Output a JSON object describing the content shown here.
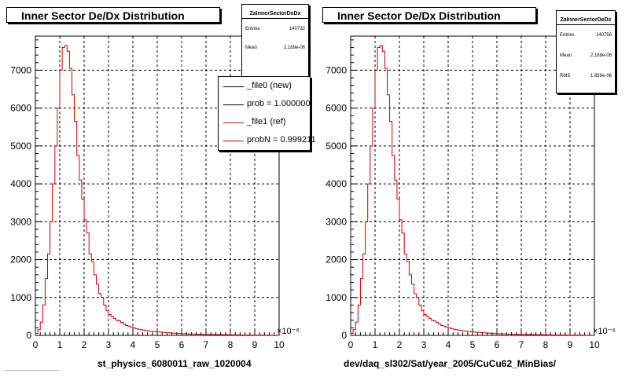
{
  "chart_data": [
    {
      "type": "bar",
      "title": "Inner Sector De/Dx Distribution",
      "xlabel": "st_physics_6080011_raw_1020004",
      "ylabel": "",
      "x_exponent_label": "×10⁻⁶",
      "xlim": [
        0,
        10
      ],
      "ylim": [
        0,
        7900
      ],
      "x_ticks": [
        "0",
        "1",
        "2",
        "3",
        "4",
        "5",
        "6",
        "7",
        "8",
        "9",
        "10"
      ],
      "y_ticks": [
        "0",
        "1000",
        "2000",
        "3000",
        "4000",
        "5000",
        "6000",
        "7000"
      ],
      "grid": true,
      "legend_position": "top-right",
      "stats": {
        "title": "ZaInnerSectorDeDx",
        "rows": [
          {
            "label": "Entries",
            "value": "140732"
          },
          {
            "label": "Mean",
            "value": "2.189e-06"
          }
        ]
      },
      "legend": [
        {
          "label": "_file0 (new)",
          "color": "#000000"
        },
        {
          "label": "prob = 1.000000",
          "color": "#000000"
        },
        {
          "label": "_file1 (ref)",
          "color": "#cc0000"
        },
        {
          "label": "probN = 0.999211",
          "color": "#cc0000"
        }
      ],
      "series": [
        {
          "color": "#cc0000",
          "bin_width": 0.1,
          "x_start": 0,
          "values": [
            50,
            150,
            350,
            800,
            1500,
            2150,
            3000,
            4000,
            5000,
            6000,
            7000,
            7600,
            7650,
            7500,
            7050,
            6350,
            5650,
            4750,
            4100,
            3600,
            3050,
            2700,
            2150,
            1950,
            1600,
            1350,
            1100,
            1000,
            800,
            650,
            550,
            500,
            450,
            400,
            380,
            340,
            300,
            260,
            240,
            220,
            200,
            180,
            160,
            150,
            140,
            130,
            120,
            110,
            100,
            95,
            90,
            85,
            80,
            75,
            70,
            65,
            60,
            55,
            50,
            48,
            45,
            42,
            40,
            38,
            36,
            34,
            32,
            30,
            28,
            26,
            25,
            24,
            23,
            22,
            21,
            20,
            19,
            18,
            17,
            16,
            15,
            14,
            13,
            12,
            12,
            11,
            11,
            10,
            10,
            9,
            9,
            8,
            8,
            8,
            7,
            7,
            6,
            6,
            5,
            5
          ]
        }
      ]
    },
    {
      "type": "bar",
      "title": "Inner Sector De/Dx Distribution",
      "xlabel": "dev/daq_sl302/Sat/year_2005/CuCu62_MinBias/",
      "ylabel": "",
      "x_exponent_label": "×10⁻⁶",
      "xlim": [
        0,
        10
      ],
      "ylim": [
        0,
        7900
      ],
      "x_ticks": [
        "0",
        "1",
        "2",
        "3",
        "4",
        "5",
        "6",
        "7",
        "8",
        "9",
        "10"
      ],
      "y_ticks": [
        "0",
        "1000",
        "2000",
        "3000",
        "4000",
        "5000",
        "6000",
        "7000"
      ],
      "grid": true,
      "stats": {
        "title": "ZaInnerSectorDeDx",
        "rows": [
          {
            "label": "Entries",
            "value": "140758"
          },
          {
            "label": "Mean",
            "value": "2.189e-06"
          },
          {
            "label": "RMS",
            "value": "1.859e-06"
          }
        ]
      },
      "series": [
        {
          "color": "#cc0000",
          "bin_width": 0.1,
          "x_start": 0,
          "values": [
            50,
            150,
            350,
            800,
            1500,
            2150,
            3000,
            4000,
            5000,
            6000,
            7000,
            7600,
            7650,
            7500,
            7050,
            6350,
            5650,
            4750,
            4100,
            3600,
            3050,
            2700,
            2150,
            1950,
            1600,
            1350,
            1100,
            1000,
            800,
            650,
            550,
            500,
            450,
            400,
            380,
            340,
            300,
            260,
            240,
            220,
            200,
            180,
            160,
            150,
            140,
            130,
            120,
            110,
            100,
            95,
            90,
            85,
            80,
            75,
            70,
            65,
            60,
            55,
            50,
            48,
            45,
            42,
            40,
            38,
            36,
            34,
            32,
            30,
            28,
            26,
            25,
            24,
            23,
            22,
            21,
            20,
            19,
            18,
            17,
            16,
            15,
            14,
            13,
            12,
            12,
            11,
            11,
            10,
            10,
            9,
            9,
            8,
            8,
            8,
            7,
            7,
            6,
            6,
            5,
            5
          ]
        }
      ]
    }
  ],
  "footer_text": "_____________________"
}
